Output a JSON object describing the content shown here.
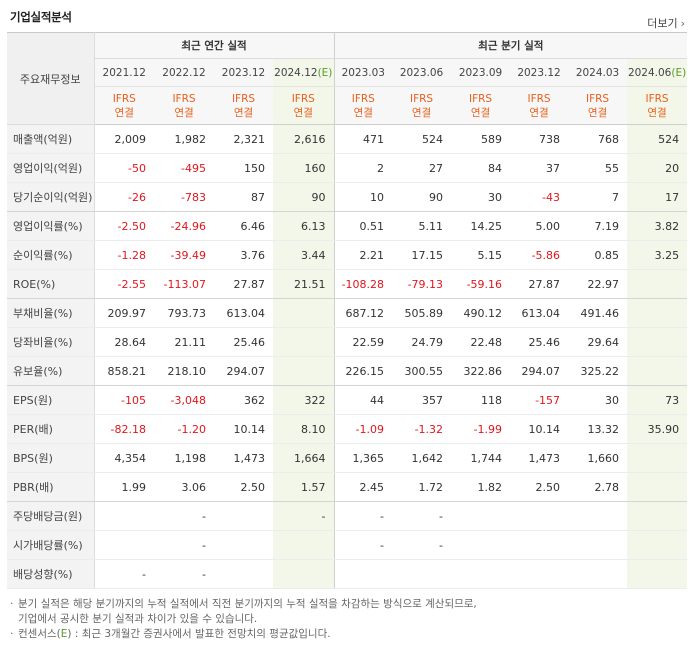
{
  "title": "기업실적분석",
  "more_label": "더보기",
  "corner_label": "주요재무정보",
  "groups": {
    "annual": "최근 연간 실적",
    "quarter": "최근 분기 실적"
  },
  "periods": [
    {
      "label": "2021.12",
      "est": ""
    },
    {
      "label": "2022.12",
      "est": ""
    },
    {
      "label": "2023.12",
      "est": ""
    },
    {
      "label": "2024.12",
      "est": "(E)"
    },
    {
      "label": "2023.03",
      "est": ""
    },
    {
      "label": "2023.06",
      "est": ""
    },
    {
      "label": "2023.09",
      "est": ""
    },
    {
      "label": "2023.12",
      "est": ""
    },
    {
      "label": "2024.03",
      "est": ""
    },
    {
      "label": "2024.06",
      "est": "(E)"
    }
  ],
  "ifrs": {
    "line1": "IFRS",
    "line2": "연결"
  },
  "rows": [
    {
      "label": "매출액(억원)",
      "values": [
        "2,009",
        "1,982",
        "2,321",
        "2,616",
        "471",
        "524",
        "589",
        "738",
        "768",
        "524"
      ]
    },
    {
      "label": "영업이익(억원)",
      "values": [
        "-50",
        "-495",
        "150",
        "160",
        "2",
        "27",
        "84",
        "37",
        "55",
        "20"
      ]
    },
    {
      "label": "당기순이익(억원)",
      "values": [
        "-26",
        "-783",
        "87",
        "90",
        "10",
        "90",
        "30",
        "-43",
        "7",
        "17"
      ]
    },
    {
      "label": "영업이익률(%)",
      "values": [
        "-2.50",
        "-24.96",
        "6.46",
        "6.13",
        "0.51",
        "5.11",
        "14.25",
        "5.00",
        "7.19",
        "3.82"
      ]
    },
    {
      "label": "순이익률(%)",
      "values": [
        "-1.28",
        "-39.49",
        "3.76",
        "3.44",
        "2.21",
        "17.15",
        "5.15",
        "-5.86",
        "0.85",
        "3.25"
      ]
    },
    {
      "label": "ROE(%)",
      "values": [
        "-2.55",
        "-113.07",
        "27.87",
        "21.51",
        "-108.28",
        "-79.13",
        "-59.16",
        "27.87",
        "22.97",
        ""
      ]
    },
    {
      "label": "부채비율(%)",
      "values": [
        "209.97",
        "793.73",
        "613.04",
        "",
        "687.12",
        "505.89",
        "490.12",
        "613.04",
        "491.46",
        ""
      ]
    },
    {
      "label": "당좌비율(%)",
      "values": [
        "28.64",
        "21.11",
        "25.46",
        "",
        "22.59",
        "24.79",
        "22.48",
        "25.46",
        "29.64",
        ""
      ]
    },
    {
      "label": "유보율(%)",
      "values": [
        "858.21",
        "218.10",
        "294.07",
        "",
        "226.15",
        "300.55",
        "322.86",
        "294.07",
        "325.22",
        ""
      ]
    },
    {
      "label": "EPS(원)",
      "values": [
        "-105",
        "-3,048",
        "362",
        "322",
        "44",
        "357",
        "118",
        "-157",
        "30",
        "73"
      ]
    },
    {
      "label": "PER(배)",
      "values": [
        "-82.18",
        "-1.20",
        "10.14",
        "8.10",
        "-1.09",
        "-1.32",
        "-1.99",
        "10.14",
        "13.32",
        "35.90"
      ]
    },
    {
      "label": "BPS(원)",
      "values": [
        "4,354",
        "1,198",
        "1,473",
        "1,664",
        "1,365",
        "1,642",
        "1,744",
        "1,473",
        "1,660",
        ""
      ]
    },
    {
      "label": "PBR(배)",
      "values": [
        "1.99",
        "3.06",
        "2.50",
        "1.57",
        "2.45",
        "1.72",
        "1.82",
        "2.50",
        "2.78",
        ""
      ]
    },
    {
      "label": "주당배당금(원)",
      "values": [
        "",
        "-",
        "",
        "-",
        "-",
        "-",
        "",
        "",
        "",
        ""
      ]
    },
    {
      "label": "시가배당률(%)",
      "values": [
        "",
        "-",
        "",
        "",
        "-",
        "-",
        "",
        "",
        "",
        ""
      ]
    },
    {
      "label": "배당성향(%)",
      "values": [
        "-",
        "-",
        "",
        "",
        "",
        "",
        "",
        "",
        "",
        ""
      ]
    }
  ],
  "notes": [
    "분기 실적은 해당 분기까지의 누적 실적에서 직전 분기까지의 누적 실적을 차감하는 방식으로 계산되므로,",
    "기업에서 공시한 분기 실적과 차이가 있을 수 있습니다.",
    "컨센서스(",
    "E",
    ") : 최근 3개월간 증권사에서 발표한 전망치의 평균값입니다."
  ],
  "colors": {
    "negative": "#e0161d",
    "ifrs": "#e8601c",
    "estimate_bg": "#f2f7ea",
    "estimate_mark": "#5a9a2a"
  }
}
